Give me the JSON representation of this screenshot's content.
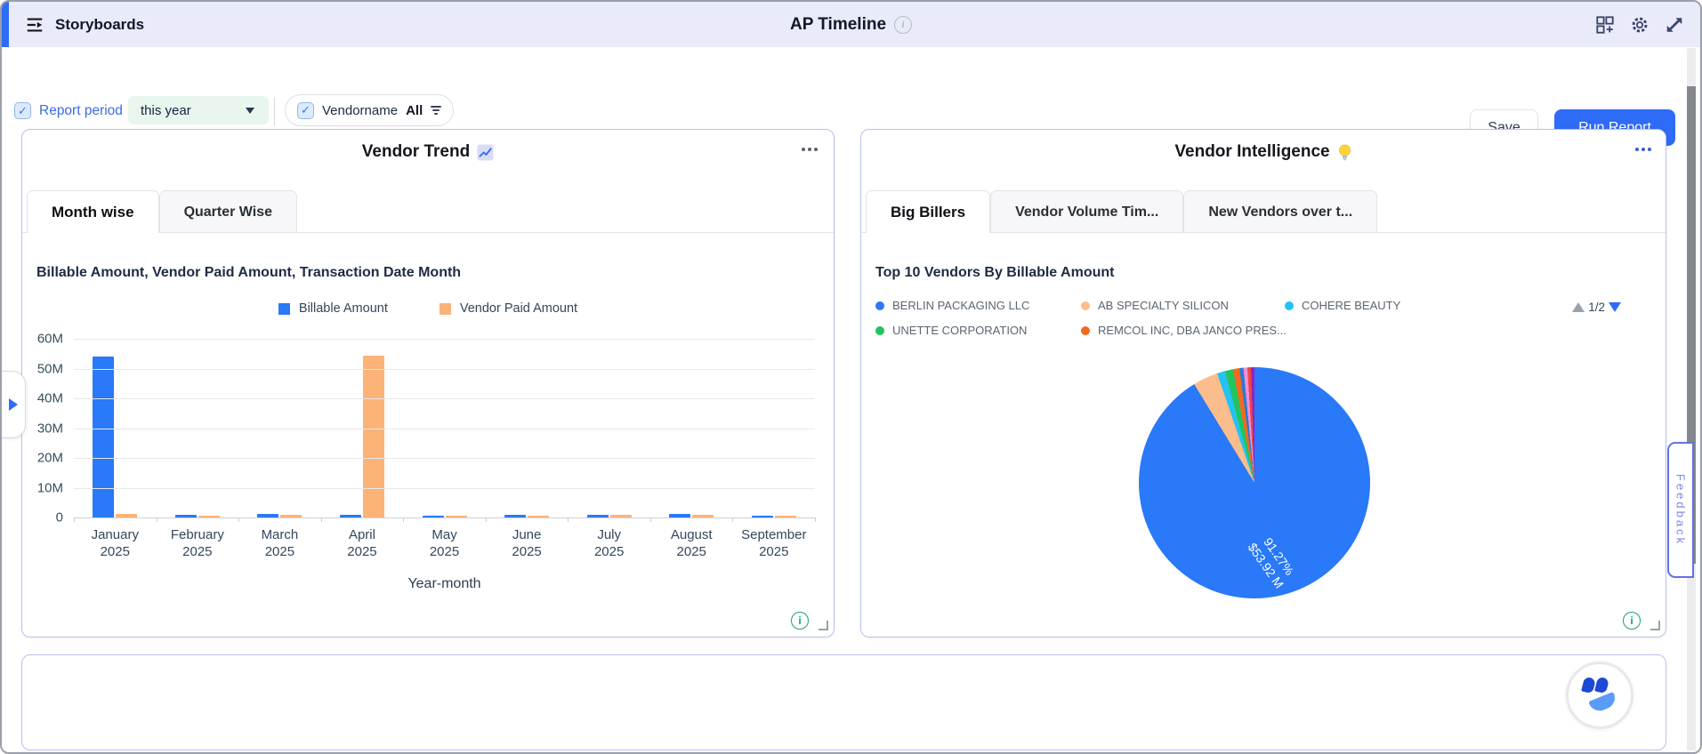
{
  "window": {
    "app_title": "Storyboards",
    "page_title": "AP Timeline"
  },
  "toolbar": {
    "save_label": "Save",
    "run_report_label": "Run Report"
  },
  "filters": {
    "report_period": {
      "label": "Report period",
      "value": "this year",
      "checked": true
    },
    "vendor": {
      "label": "Vendorname",
      "value": "All",
      "checked": true
    }
  },
  "panels": {
    "vendor_trend": {
      "title": "Vendor Trend",
      "title_icon": "chart-increasing",
      "tabs": [
        {
          "label": "Month wise",
          "active": true
        },
        {
          "label": "Quarter Wise",
          "active": false
        }
      ],
      "section_title": "Billable Amount, Vendor Paid Amount, Transaction Date Month"
    },
    "vendor_intelligence": {
      "title": "Vendor Intelligence",
      "title_icon": "light-bulb",
      "tabs": [
        {
          "label": "Big Billers",
          "active": true
        },
        {
          "label": "Vendor Volume Tim...",
          "active": false
        },
        {
          "label": "New Vendors over t...",
          "active": false
        }
      ],
      "section_title": "Top 10 Vendors By Billable Amount",
      "legend_pagination": "1/2"
    }
  },
  "feedback_label": "Feedback",
  "colors": {
    "accent_blue": "#2e6bf6",
    "bar_blue": "#2979f8",
    "bar_orange": "#fbb378",
    "panel_border": "#b9c0f0"
  },
  "chart_data": [
    {
      "type": "bar",
      "title": "Billable Amount, Vendor Paid Amount, Transaction Date Month",
      "categories": [
        "January 2025",
        "February 2025",
        "March 2025",
        "April 2025",
        "May 2025",
        "June 2025",
        "July 2025",
        "August 2025",
        "September 2025"
      ],
      "series": [
        {
          "name": "Billable Amount",
          "color": "#2979f8",
          "values": [
            54,
            0.8,
            1.1,
            0.9,
            0.6,
            0.9,
            1.0,
            1.2,
            0.2
          ]
        },
        {
          "name": "Vendor Paid Amount",
          "color": "#fbb378",
          "values": [
            1.2,
            0.7,
            0.9,
            54.2,
            0.5,
            0.6,
            0.8,
            1.0,
            0.7
          ]
        }
      ],
      "value_unit": "M",
      "ylim": [
        0,
        60
      ],
      "yticks": [
        "60M",
        "50M",
        "40M",
        "30M",
        "20M",
        "10M",
        "0"
      ],
      "xlabel": "Year-month",
      "grid": true,
      "legend_position": "top"
    },
    {
      "type": "pie",
      "title": "Top 10 Vendors By Billable Amount",
      "slices": [
        {
          "label": "BERLIN PACKAGING LLC",
          "color": "#2979f8",
          "pct": 91.27,
          "value_label": "$53.92 M"
        },
        {
          "label": "AB SPECIALTY SILICON",
          "color": "#fbbd8b",
          "pct": 3.5
        },
        {
          "label": "COHERE BEAUTY",
          "color": "#23c3f2",
          "pct": 1.15
        },
        {
          "label": "UNETTE CORPORATION",
          "color": "#21c45d",
          "pct": 1.1
        },
        {
          "label": "REMCOL INC, DBA JANCO PRES...",
          "color": "#f26a1e",
          "pct": 0.9
        },
        {
          "label": "",
          "color": "#2b7bd4",
          "pct": 0.55
        },
        {
          "label": "",
          "color": "#f48fd4",
          "pct": 0.55
        },
        {
          "label": "",
          "color": "#ee4444",
          "pct": 0.5
        },
        {
          "label": "",
          "color": "#8e24c9",
          "pct": 0.48
        }
      ],
      "legend_items": [
        {
          "label": "BERLIN PACKAGING LLC",
          "color": "#2979f8"
        },
        {
          "label": "AB SPECIALTY SILICON",
          "color": "#fbbd8b"
        },
        {
          "label": "COHERE BEAUTY",
          "color": "#23c3f2"
        },
        {
          "label": "UNETTE CORPORATION",
          "color": "#21c45d"
        },
        {
          "label": "REMCOL INC, DBA JANCO PRES...",
          "color": "#f26a1e"
        }
      ],
      "callout": {
        "line1": "91.27%",
        "line2": "$53.92 M"
      },
      "legend_pagination": "1/2",
      "legend_position": "top"
    }
  ]
}
